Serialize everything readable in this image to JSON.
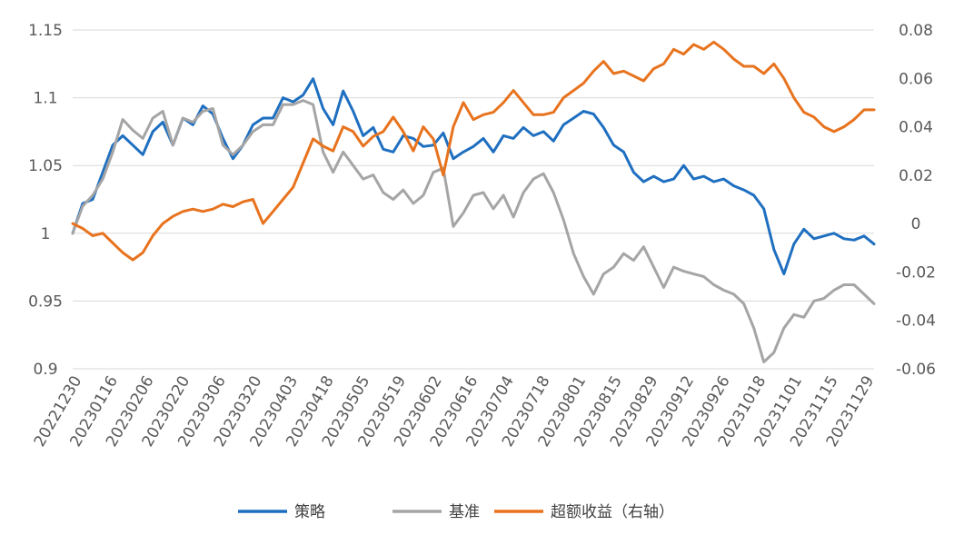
{
  "chart_data": {
    "type": "line",
    "x_ticks": [
      "20221230",
      "20230116",
      "20230206",
      "20230220",
      "20230306",
      "20230320",
      "20230403",
      "20230418",
      "20230505",
      "20230519",
      "20230602",
      "20230616",
      "20230704",
      "20230718",
      "20230801",
      "20230815",
      "20230829",
      "20230912",
      "20230926",
      "20231018",
      "20231101",
      "20231115",
      "20231129"
    ],
    "y_left": {
      "range": [
        0.9,
        1.15
      ],
      "ticks": [
        "0.9",
        "0.95",
        "1",
        "1.05",
        "1.1",
        "1.15"
      ]
    },
    "y_right": {
      "range": [
        -0.06,
        0.08
      ],
      "ticks": [
        "-0.06",
        "-0.04",
        "-0.02",
        "0",
        "0.02",
        "0.04",
        "0.06",
        "0.08"
      ]
    },
    "grid": "horizontal",
    "legend_position": "bottom",
    "series": [
      {
        "name": "策略",
        "axis": "left",
        "color": "#1f6fc0",
        "values": [
          1.0,
          1.022,
          1.025,
          1.045,
          1.065,
          1.072,
          1.065,
          1.058,
          1.075,
          1.082,
          1.065,
          1.085,
          1.08,
          1.094,
          1.088,
          1.07,
          1.055,
          1.065,
          1.08,
          1.085,
          1.085,
          1.1,
          1.097,
          1.102,
          1.114,
          1.092,
          1.08,
          1.105,
          1.09,
          1.072,
          1.078,
          1.062,
          1.06,
          1.072,
          1.07,
          1.064,
          1.065,
          1.074,
          1.055,
          1.06,
          1.064,
          1.07,
          1.06,
          1.072,
          1.07,
          1.078,
          1.072,
          1.075,
          1.068,
          1.08,
          1.085,
          1.09,
          1.088,
          1.078,
          1.065,
          1.06,
          1.045,
          1.038,
          1.042,
          1.038,
          1.04,
          1.05,
          1.04,
          1.042,
          1.038,
          1.04,
          1.035,
          1.032,
          1.028,
          1.018,
          0.988,
          0.97,
          0.992,
          1.003,
          0.996,
          0.998,
          1.0,
          0.996,
          0.995,
          0.998,
          0.992
        ]
      },
      {
        "name": "基准",
        "axis": "left",
        "color": "#a5a5a5",
        "values": [
          1.0,
          1.02,
          1.028,
          1.04,
          1.06,
          1.084,
          1.076,
          1.07,
          1.085,
          1.09,
          1.065,
          1.085,
          1.082,
          1.09,
          1.092,
          1.065,
          1.058,
          1.065,
          1.075,
          1.08,
          1.08,
          1.095,
          1.095,
          1.098,
          1.095,
          1.06,
          1.045,
          1.06,
          1.05,
          1.04,
          1.043,
          1.03,
          1.025,
          1.032,
          1.022,
          1.028,
          1.045,
          1.048,
          1.005,
          1.015,
          1.028,
          1.03,
          1.018,
          1.028,
          1.012,
          1.03,
          1.04,
          1.044,
          1.03,
          1.01,
          0.985,
          0.968,
          0.955,
          0.97,
          0.975,
          0.985,
          0.98,
          0.99,
          0.975,
          0.96,
          0.975,
          0.972,
          0.97,
          0.968,
          0.962,
          0.958,
          0.955,
          0.948,
          0.93,
          0.905,
          0.912,
          0.93,
          0.94,
          0.938,
          0.95,
          0.952,
          0.958,
          0.962,
          0.962,
          0.955,
          0.948
        ]
      },
      {
        "name": "超额收益（右轴）",
        "axis": "right",
        "color": "#e8731e",
        "values": [
          0.0,
          -0.002,
          -0.005,
          -0.004,
          -0.008,
          -0.012,
          -0.015,
          -0.012,
          -0.005,
          0.0,
          0.003,
          0.005,
          0.006,
          0.005,
          0.006,
          0.008,
          0.007,
          0.009,
          0.01,
          0.0,
          0.005,
          0.01,
          0.015,
          0.025,
          0.035,
          0.032,
          0.03,
          0.04,
          0.038,
          0.032,
          0.036,
          0.038,
          0.044,
          0.038,
          0.03,
          0.04,
          0.035,
          0.02,
          0.04,
          0.05,
          0.043,
          0.045,
          0.046,
          0.05,
          0.055,
          0.05,
          0.045,
          0.045,
          0.046,
          0.052,
          0.055,
          0.058,
          0.063,
          0.067,
          0.062,
          0.063,
          0.061,
          0.059,
          0.064,
          0.066,
          0.072,
          0.07,
          0.074,
          0.072,
          0.075,
          0.072,
          0.068,
          0.065,
          0.065,
          0.062,
          0.066,
          0.06,
          0.052,
          0.046,
          0.044,
          0.04,
          0.038,
          0.04,
          0.043,
          0.047,
          0.047
        ]
      }
    ]
  }
}
